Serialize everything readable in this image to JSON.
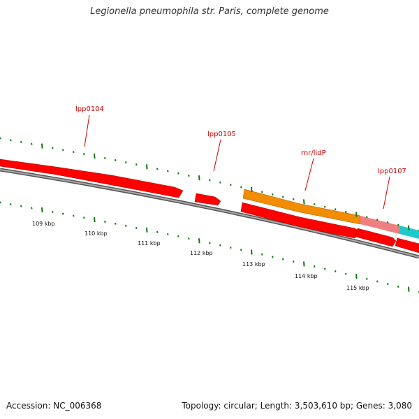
{
  "header": {
    "title": "Legionella pneumophila str. Paris, complete genome"
  },
  "footer": {
    "accession": "Accession: NC_006368",
    "summary": "Topology: circular; Length: 3,503,610 bp; Genes: 3,080"
  },
  "colors": {
    "gene_red": "#ff0000",
    "gene_orange": "#f28c00",
    "gene_pink": "#f08080",
    "gene_cyan": "#1cc9cc",
    "backbone": "#888888",
    "tick": "#117711",
    "label": "#cc0000"
  },
  "genome_map": {
    "scale_labels": [
      "109 kbp",
      "110 kbp",
      "111 kbp",
      "112 kbp",
      "113 kbp",
      "114 kbp",
      "115 kbp"
    ],
    "gene_labels": [
      "lpp0104",
      "lpp0105",
      "rnr/lidP",
      "lpp0107"
    ]
  }
}
